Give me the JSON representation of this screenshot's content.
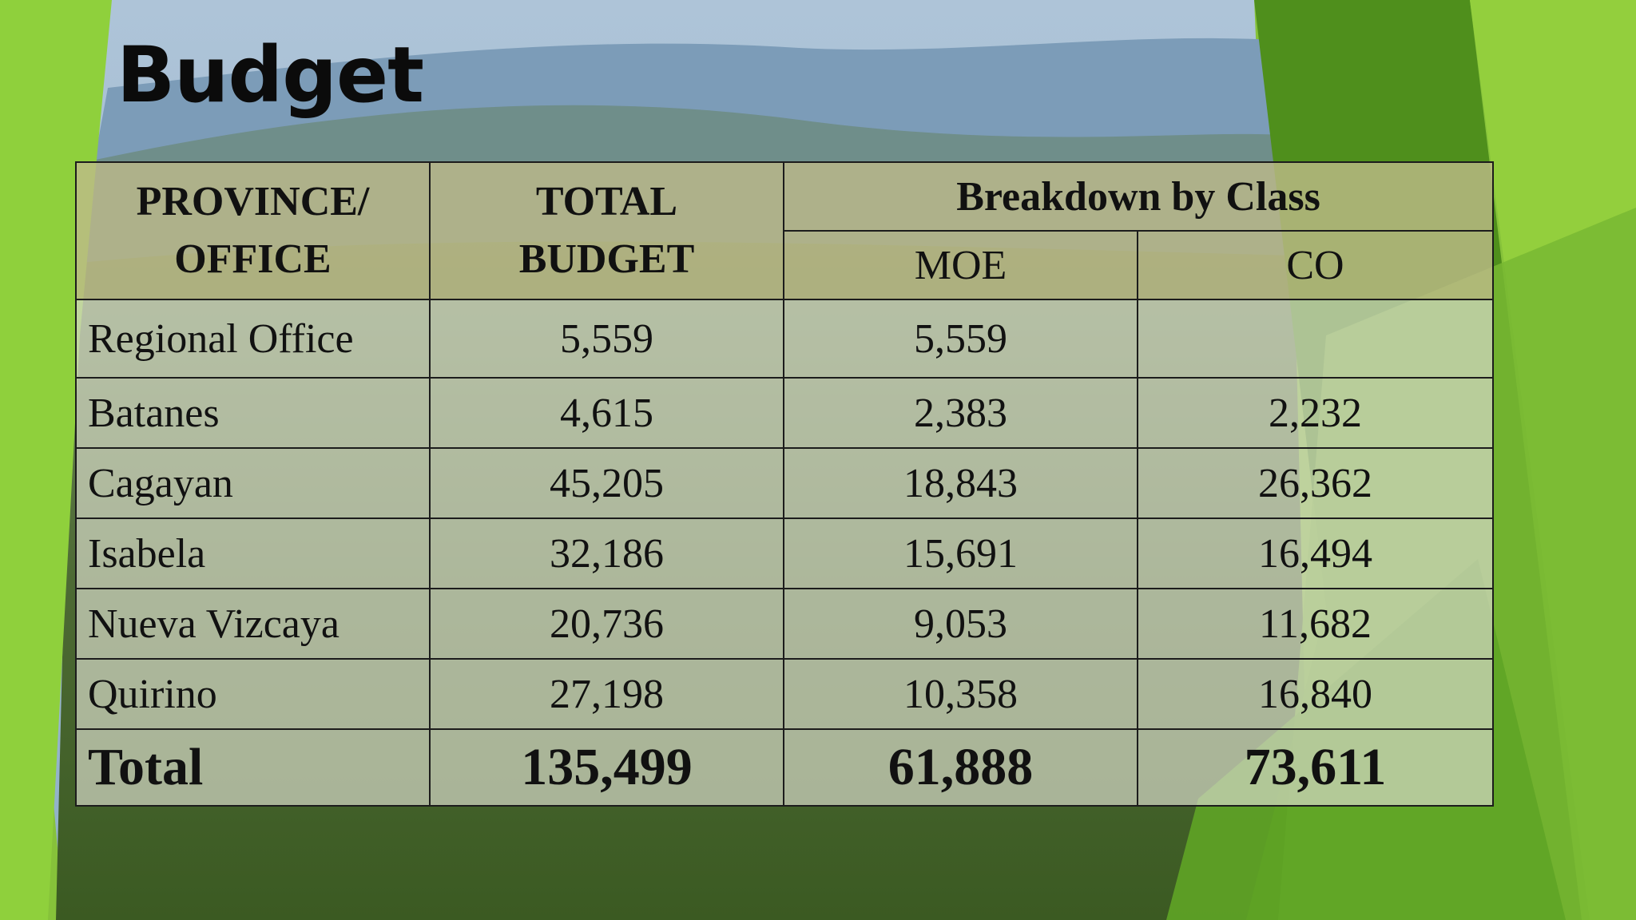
{
  "slide": {
    "title": "Budget"
  },
  "table": {
    "headers": {
      "province": "PROVINCE/\nOFFICE",
      "total": "TOTAL\nBUDGET",
      "breakdown": "Breakdown by Class",
      "moe": "MOE",
      "co": "CO"
    },
    "rows": [
      {
        "name": "Regional Office",
        "total": "5,559",
        "moe": "5,559",
        "co": ""
      },
      {
        "name": "Batanes",
        "total": "4,615",
        "moe": "2,383",
        "co": "2,232"
      },
      {
        "name": "Cagayan",
        "total": "45,205",
        "moe": "18,843",
        "co": "26,362"
      },
      {
        "name": "Isabela",
        "total": "32,186",
        "moe": "15,691",
        "co": "16,494"
      },
      {
        "name": "Nueva Vizcaya",
        "total": "20,736",
        "moe": "9,053",
        "co": "11,682"
      },
      {
        "name": "Quirino",
        "total": "27,198",
        "moe": "10,358",
        "co": "16,840"
      }
    ],
    "footer": {
      "name": "Total",
      "total": "135,499",
      "moe": "61,888",
      "co": "73,611"
    }
  },
  "colors": {
    "accent_green": "#7fbf3a",
    "dark_green": "#4a8a1e",
    "header_fill": "#bebA8a"
  }
}
